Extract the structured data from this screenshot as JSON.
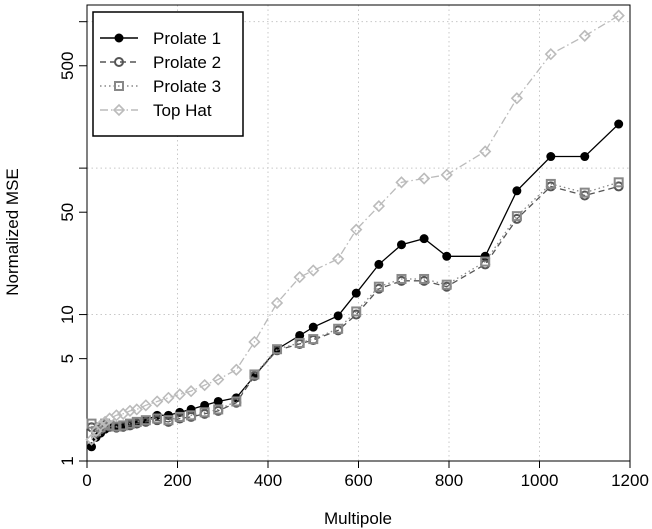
{
  "chart_data": {
    "type": "line",
    "xlabel": "Multipole",
    "ylabel": "Normalized MSE",
    "y_scale": "log",
    "xlim": [
      0,
      1200
    ],
    "ylim": [
      1,
      1300
    ],
    "x_ticks": [
      0,
      200,
      400,
      600,
      800,
      1000,
      1200
    ],
    "y_ticks": [
      1,
      5,
      10,
      50,
      500
    ],
    "y_grid_lines": [
      1,
      10,
      100,
      1000
    ],
    "grid": true,
    "legend_position": "top-left",
    "series": [
      {
        "name": "Prolate 1",
        "line_style": "solid",
        "marker": "filled-circle",
        "color": "#000000",
        "points": [
          [
            10,
            1.25
          ],
          [
            20,
            1.45
          ],
          [
            30,
            1.55
          ],
          [
            40,
            1.65
          ],
          [
            50,
            1.7
          ],
          [
            65,
            1.68
          ],
          [
            80,
            1.7
          ],
          [
            95,
            1.78
          ],
          [
            110,
            1.82
          ],
          [
            130,
            1.9
          ],
          [
            155,
            2.05
          ],
          [
            180,
            2.05
          ],
          [
            205,
            2.15
          ],
          [
            230,
            2.25
          ],
          [
            260,
            2.4
          ],
          [
            290,
            2.55
          ],
          [
            330,
            2.7
          ],
          [
            370,
            3.8
          ],
          [
            420,
            5.8
          ],
          [
            470,
            7.2
          ],
          [
            500,
            8.2
          ],
          [
            555,
            9.8
          ],
          [
            595,
            14.0
          ],
          [
            645,
            22.0
          ],
          [
            695,
            30.0
          ],
          [
            745,
            33.0
          ],
          [
            795,
            25.0
          ],
          [
            880,
            25.0
          ],
          [
            950,
            70.0
          ],
          [
            1025,
            120.0
          ],
          [
            1100,
            120.0
          ],
          [
            1175,
            200.0
          ]
        ]
      },
      {
        "name": "Prolate 2",
        "line_style": "dashed",
        "marker": "open-circle",
        "color": "#555555",
        "points": [
          [
            10,
            1.7
          ],
          [
            20,
            1.55
          ],
          [
            30,
            1.65
          ],
          [
            40,
            1.75
          ],
          [
            50,
            1.72
          ],
          [
            65,
            1.7
          ],
          [
            80,
            1.72
          ],
          [
            95,
            1.75
          ],
          [
            110,
            1.8
          ],
          [
            130,
            1.85
          ],
          [
            155,
            1.9
          ],
          [
            180,
            1.85
          ],
          [
            205,
            1.95
          ],
          [
            230,
            2.0
          ],
          [
            260,
            2.1
          ],
          [
            290,
            2.2
          ],
          [
            330,
            2.5
          ],
          [
            370,
            3.8
          ],
          [
            420,
            5.7
          ],
          [
            470,
            6.3
          ],
          [
            500,
            6.7
          ],
          [
            555,
            7.8
          ],
          [
            595,
            10.0
          ],
          [
            645,
            15.0
          ],
          [
            695,
            17.0
          ],
          [
            745,
            17.0
          ],
          [
            795,
            15.5
          ],
          [
            880,
            22.0
          ],
          [
            950,
            45.0
          ],
          [
            1025,
            75.0
          ],
          [
            1100,
            65.0
          ],
          [
            1175,
            75.0
          ]
        ]
      },
      {
        "name": "Prolate 3",
        "line_style": "dotted",
        "marker": "open-square",
        "color": "#888888",
        "points": [
          [
            10,
            1.8
          ],
          [
            20,
            1.6
          ],
          [
            30,
            1.7
          ],
          [
            40,
            1.8
          ],
          [
            50,
            1.75
          ],
          [
            65,
            1.72
          ],
          [
            80,
            1.75
          ],
          [
            95,
            1.8
          ],
          [
            110,
            1.85
          ],
          [
            130,
            1.9
          ],
          [
            155,
            1.95
          ],
          [
            180,
            1.9
          ],
          [
            205,
            2.0
          ],
          [
            230,
            2.05
          ],
          [
            260,
            2.15
          ],
          [
            290,
            2.25
          ],
          [
            330,
            2.55
          ],
          [
            370,
            3.9
          ],
          [
            420,
            5.8
          ],
          [
            470,
            6.4
          ],
          [
            500,
            6.8
          ],
          [
            555,
            8.0
          ],
          [
            595,
            10.5
          ],
          [
            645,
            15.5
          ],
          [
            695,
            17.5
          ],
          [
            745,
            17.5
          ],
          [
            795,
            16.0
          ],
          [
            880,
            23.0
          ],
          [
            950,
            47.0
          ],
          [
            1025,
            78.0
          ],
          [
            1100,
            68.0
          ],
          [
            1175,
            80.0
          ]
        ]
      },
      {
        "name": "Top Hat",
        "line_style": "dashdot",
        "marker": "open-diamond",
        "color": "#bbbbbb",
        "points": [
          [
            10,
            1.4
          ],
          [
            20,
            1.6
          ],
          [
            30,
            1.75
          ],
          [
            40,
            1.85
          ],
          [
            50,
            1.95
          ],
          [
            65,
            2.05
          ],
          [
            80,
            2.1
          ],
          [
            95,
            2.2
          ],
          [
            110,
            2.25
          ],
          [
            130,
            2.4
          ],
          [
            155,
            2.55
          ],
          [
            180,
            2.7
          ],
          [
            205,
            2.85
          ],
          [
            230,
            3.0
          ],
          [
            260,
            3.3
          ],
          [
            290,
            3.6
          ],
          [
            330,
            4.2
          ],
          [
            370,
            6.5
          ],
          [
            420,
            12.0
          ],
          [
            470,
            18.0
          ],
          [
            500,
            20.0
          ],
          [
            555,
            24.0
          ],
          [
            595,
            38.0
          ],
          [
            645,
            55.0
          ],
          [
            695,
            80.0
          ],
          [
            745,
            85.0
          ],
          [
            795,
            90.0
          ],
          [
            880,
            130.0
          ],
          [
            950,
            300.0
          ],
          [
            1025,
            600.0
          ],
          [
            1100,
            800.0
          ],
          [
            1175,
            1100.0
          ]
        ]
      }
    ]
  }
}
